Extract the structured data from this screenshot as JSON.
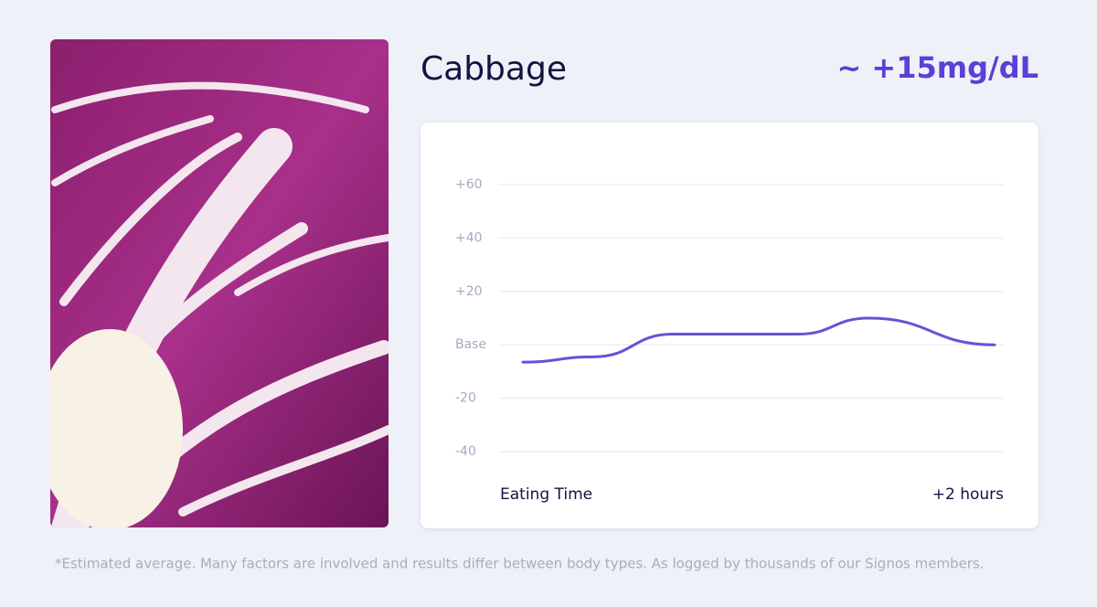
{
  "food": {
    "name": "Cabbage",
    "estimate": "~ +15mg/dL"
  },
  "chart_data": {
    "type": "line",
    "x": [
      0,
      18,
      38,
      70,
      88,
      120
    ],
    "series": [
      {
        "color": "#6a50d8",
        "values": [
          -6.5,
          -4.5,
          4,
          4,
          10,
          0
        ]
      }
    ],
    "xlim": [
      0,
      120
    ],
    "xticks": [
      {
        "value": 0,
        "label": "Eating Time"
      },
      {
        "value": 120,
        "label": "+2 hours"
      }
    ],
    "ylim": [
      -40,
      60
    ],
    "yticks": [
      {
        "value": 60,
        "label": "+60"
      },
      {
        "value": 40,
        "label": "+40"
      },
      {
        "value": 20,
        "label": "+20"
      },
      {
        "value": 0,
        "label": "Base"
      },
      -20,
      -40
    ],
    "grid": true
  },
  "footnote": "*Estimated average. Many factors are involved and results differ between body types. As logged by thousands of our Signos members."
}
